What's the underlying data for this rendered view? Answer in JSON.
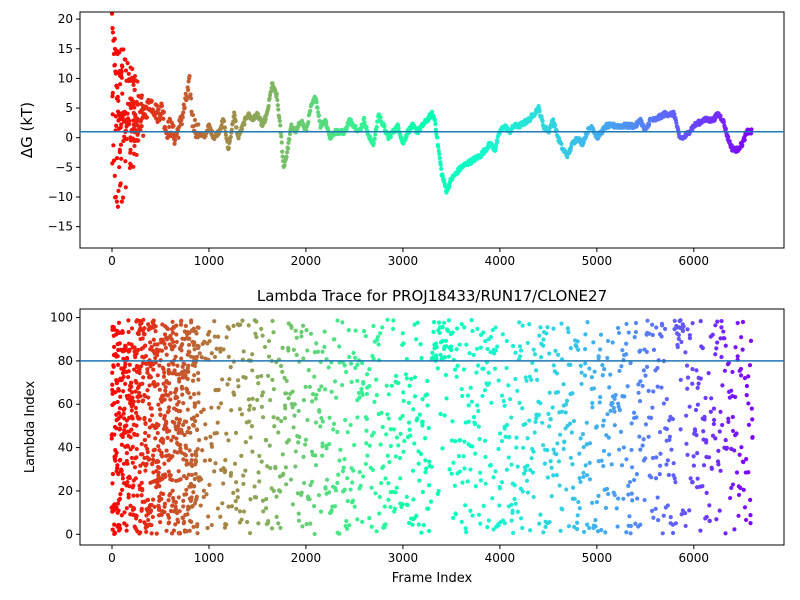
{
  "chart_data": [
    {
      "type": "scatter",
      "title": "",
      "xlabel": "",
      "ylabel": "ΔG (kT)",
      "xlim": [
        -330,
        6930
      ],
      "ylim": [
        -18.6,
        21.2
      ],
      "x_ticks": [
        0,
        1000,
        2000,
        3000,
        4000,
        5000,
        6000
      ],
      "y_ticks": [
        -15,
        -10,
        -5,
        0,
        5,
        10,
        15,
        20
      ],
      "hline": 1.0,
      "hline_color": "#1f77b4",
      "colormap": "rainbow (red at frame 0 → violet at last frame)",
      "frames": [
        0,
        6600
      ],
      "trace_points": [
        [
          0,
          20
        ],
        [
          30,
          12
        ],
        [
          60,
          6
        ],
        [
          90,
          2
        ],
        [
          120,
          4
        ],
        [
          160,
          3
        ],
        [
          200,
          5
        ],
        [
          260,
          2
        ],
        [
          330,
          4
        ],
        [
          400,
          6
        ],
        [
          470,
          4
        ],
        [
          520,
          5
        ],
        [
          560,
          1
        ],
        [
          600,
          2
        ],
        [
          650,
          0
        ],
        [
          700,
          2
        ],
        [
          760,
          6
        ],
        [
          800,
          9
        ],
        [
          830,
          3
        ],
        [
          880,
          1
        ],
        [
          950,
          0
        ],
        [
          1000,
          2
        ],
        [
          1050,
          0
        ],
        [
          1100,
          1
        ],
        [
          1150,
          3
        ],
        [
          1200,
          -2
        ],
        [
          1260,
          4
        ],
        [
          1300,
          0
        ],
        [
          1350,
          2
        ],
        [
          1400,
          4
        ],
        [
          1450,
          3
        ],
        [
          1500,
          4
        ],
        [
          1550,
          2
        ],
        [
          1600,
          4
        ],
        [
          1650,
          9
        ],
        [
          1700,
          7
        ],
        [
          1740,
          1
        ],
        [
          1770,
          -5
        ],
        [
          1800,
          -3
        ],
        [
          1850,
          2
        ],
        [
          1900,
          1
        ],
        [
          1950,
          3
        ],
        [
          2000,
          1
        ],
        [
          2050,
          5
        ],
        [
          2100,
          7
        ],
        [
          2150,
          2
        ],
        [
          2200,
          3
        ],
        [
          2250,
          0
        ],
        [
          2300,
          1
        ],
        [
          2400,
          1
        ],
        [
          2450,
          3
        ],
        [
          2500,
          2
        ],
        [
          2550,
          1
        ],
        [
          2600,
          3
        ],
        [
          2650,
          0
        ],
        [
          2700,
          -1
        ],
        [
          2750,
          4
        ],
        [
          2800,
          2
        ],
        [
          2850,
          0
        ],
        [
          2900,
          1
        ],
        [
          2950,
          2
        ],
        [
          3000,
          -1
        ],
        [
          3050,
          1
        ],
        [
          3100,
          2
        ],
        [
          3150,
          1
        ],
        [
          3200,
          2
        ],
        [
          3250,
          3
        ],
        [
          3300,
          4
        ],
        [
          3330,
          3
        ],
        [
          3360,
          -1
        ],
        [
          3400,
          -6
        ],
        [
          3450,
          -9
        ],
        [
          3500,
          -7
        ],
        [
          3550,
          -6
        ],
        [
          3600,
          -5
        ],
        [
          3700,
          -4
        ],
        [
          3800,
          -3
        ],
        [
          3900,
          -1
        ],
        [
          3950,
          -2
        ],
        [
          4000,
          1
        ],
        [
          4050,
          2
        ],
        [
          4100,
          1
        ],
        [
          4150,
          2
        ],
        [
          4200,
          2
        ],
        [
          4300,
          3
        ],
        [
          4350,
          4
        ],
        [
          4400,
          5
        ],
        [
          4450,
          2
        ],
        [
          4500,
          1
        ],
        [
          4550,
          3
        ],
        [
          4600,
          0
        ],
        [
          4650,
          -2
        ],
        [
          4700,
          -3
        ],
        [
          4750,
          -1
        ],
        [
          4800,
          0
        ],
        [
          4850,
          -1
        ],
        [
          4900,
          1
        ],
        [
          4950,
          2
        ],
        [
          5000,
          0
        ],
        [
          5050,
          1
        ],
        [
          5100,
          2
        ],
        [
          5200,
          2
        ],
        [
          5300,
          2
        ],
        [
          5400,
          2
        ],
        [
          5450,
          3
        ],
        [
          5500,
          1
        ],
        [
          5550,
          3
        ],
        [
          5600,
          3
        ],
        [
          5700,
          4
        ],
        [
          5750,
          4
        ],
        [
          5800,
          4
        ],
        [
          5850,
          0
        ],
        [
          5900,
          0
        ],
        [
          6000,
          2
        ],
        [
          6100,
          3
        ],
        [
          6200,
          3
        ],
        [
          6250,
          4
        ],
        [
          6300,
          3
        ],
        [
          6350,
          0
        ],
        [
          6400,
          -2
        ],
        [
          6450,
          -2
        ],
        [
          6500,
          -1
        ],
        [
          6550,
          1
        ],
        [
          6600,
          1
        ]
      ],
      "early_scatter_ylim": [
        -17,
        20
      ]
    },
    {
      "type": "scatter",
      "title": "Lambda Trace for PROJ18433/RUN17/CLONE27",
      "xlabel": "Frame Index",
      "ylabel": "Lambda Index",
      "xlim": [
        -330,
        6930
      ],
      "ylim": [
        -4.95,
        103.95
      ],
      "x_ticks": [
        0,
        1000,
        2000,
        3000,
        4000,
        5000,
        6000
      ],
      "y_ticks": [
        0,
        20,
        40,
        60,
        80,
        100
      ],
      "hline": 80,
      "hline_color": "#1f77b4",
      "colormap": "rainbow (red at frame 0 → violet at last frame)",
      "frames": [
        0,
        6600
      ],
      "lambda_range": [
        0,
        99
      ],
      "high_cluster_x": [
        3300,
        3500
      ],
      "high_cluster_y": [
        80,
        99
      ]
    }
  ]
}
